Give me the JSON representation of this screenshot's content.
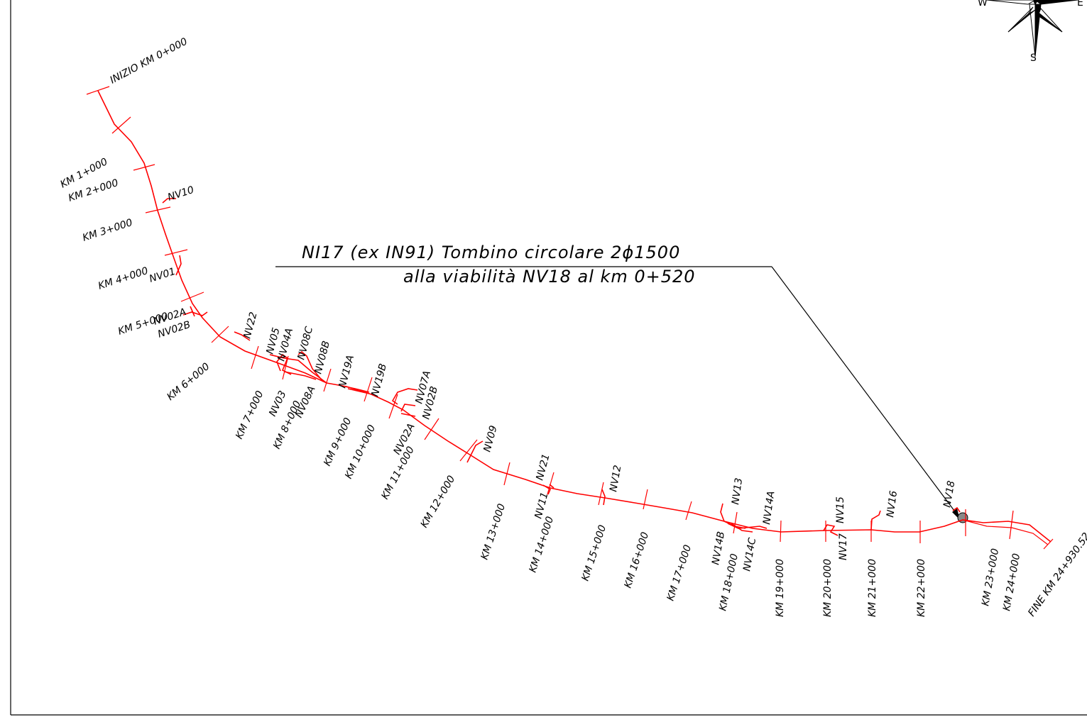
{
  "colors": {
    "route": "#ff0000",
    "ink": "#000000",
    "frame": "#000000"
  },
  "compass": {
    "west": "W",
    "east": "E",
    "south": "S"
  },
  "note": {
    "line1": "NI17 (ex IN91) Tombino circolare 2ϕ1500",
    "line2": "alla viabilità NV18 al km 0+520"
  },
  "chainage": [
    "INIZIO KM 0+000",
    "KM 1+000",
    "KM 2+000",
    "KM 3+000",
    "KM 4+000",
    "KM 5+000",
    "KM 6+000",
    "KM 7+000",
    "KM 8+000",
    "KM 9+000",
    "KM 10+000",
    "KM 11+000",
    "KM 12+000",
    "KM 13+000",
    "KM 14+000",
    "KM 15+000",
    "KM 16+000",
    "KM 17+000",
    "KM 18+000",
    "KM 19+000",
    "KM 20+000",
    "KM 21+000",
    "KM 22+000",
    "KM 23+000",
    "KM 24+000",
    "FINE KM 24+930.52"
  ],
  "viabilita": [
    "NV10",
    "NV01",
    "NV02A",
    "NV02B",
    "NV22",
    "NV05",
    "NV04A",
    "NV08C",
    "NV08B",
    "NV03",
    "NV08A",
    "NV19A",
    "NV19B",
    "NV07A",
    "NV02B",
    "NV02A",
    "NV09",
    "NV21",
    "NV11",
    "NV12",
    "NV13",
    "NV14A",
    "NV14B",
    "NV14C",
    "NV15",
    "NV17",
    "NV16",
    "NV18"
  ]
}
